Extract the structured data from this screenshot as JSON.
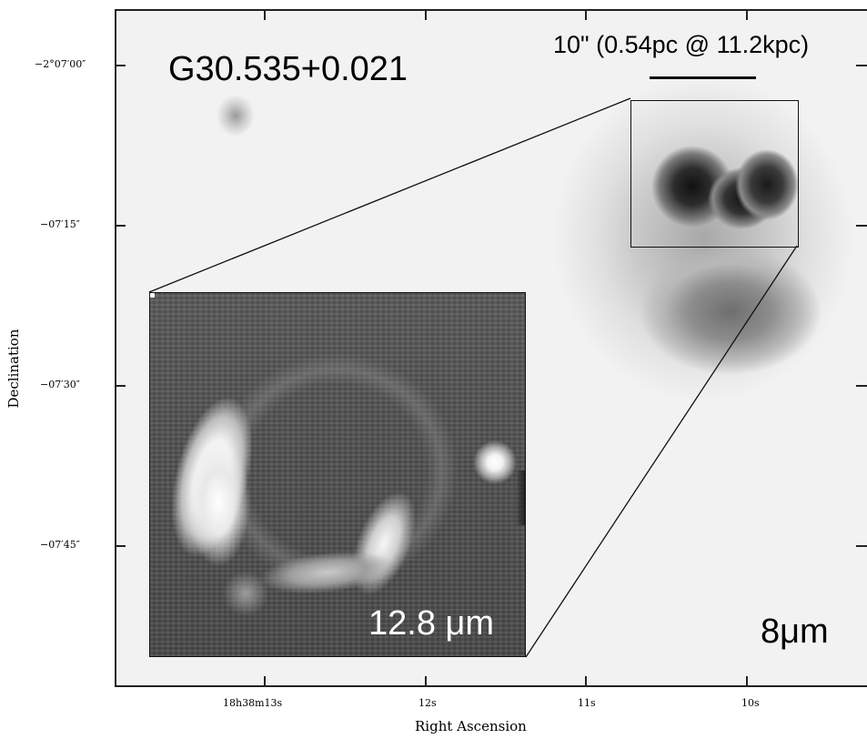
{
  "source_name": "G30.535+0.021",
  "scale_bar_label": "10\" (0.54pc @ 11.2kpc)",
  "main_band": "8μm",
  "inset_band": "12.8 μm",
  "axes": {
    "ylabel": "Declination",
    "xlabel": "Right Ascension",
    "yticks": [
      "−2°07′00″",
      "−07′15″",
      "−07′30″",
      "−07′45″"
    ],
    "xticks": [
      "18h38m13s",
      "12s",
      "11s",
      "10s"
    ]
  }
}
